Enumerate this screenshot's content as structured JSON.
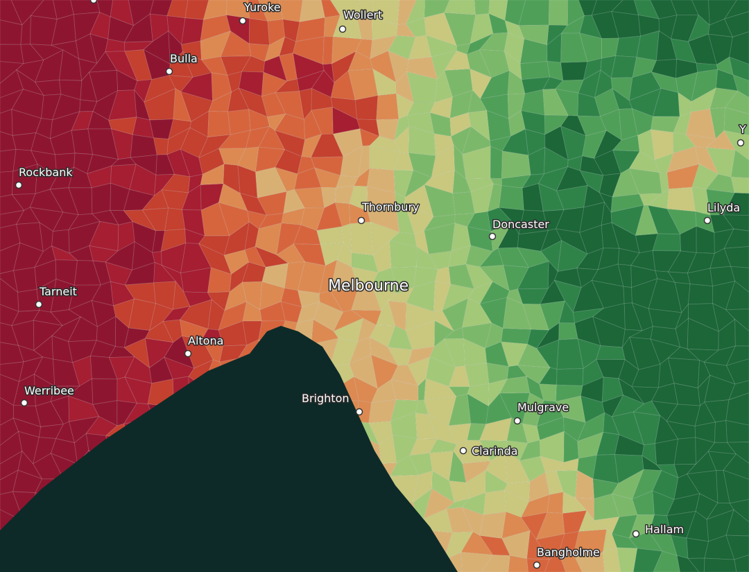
{
  "places": [
    "Yuroke",
    "Wollert",
    "Bulla",
    "Rockbank",
    "Thornbury",
    "Doncaster",
    "Lilyda",
    "Y",
    "Melbourne",
    "Tarneit",
    "Altona",
    "Werribee",
    "Brighton",
    "Mulgrave",
    "Clarinda",
    "Hallam",
    "Bangholme"
  ]
}
